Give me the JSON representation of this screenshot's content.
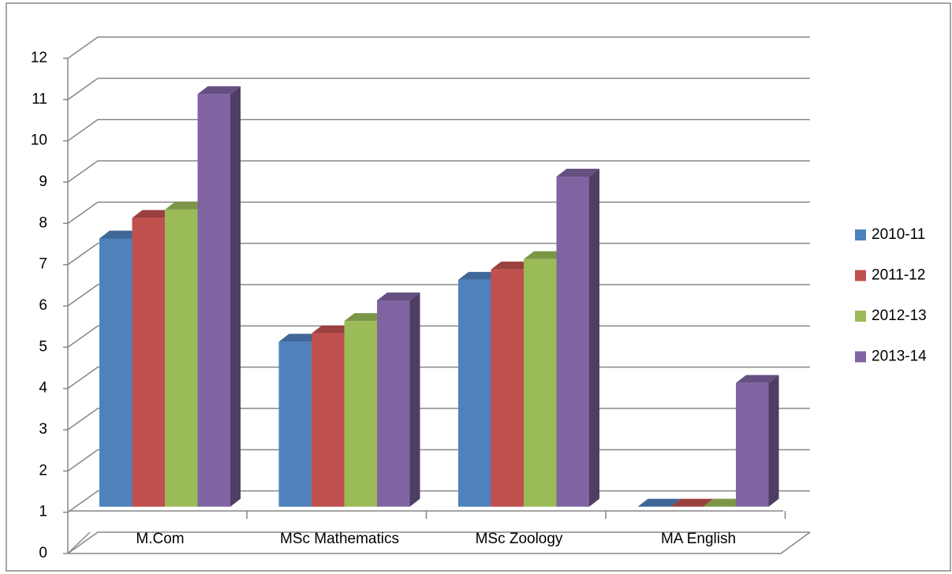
{
  "chart_data": {
    "type": "bar3d",
    "categories": [
      "M.Com",
      "MSc Mathematics",
      "MSc Zoology",
      "MA English"
    ],
    "series": [
      {
        "name": "2010-11",
        "color": "#4f81bd",
        "values": [
          7.5,
          5,
          6.5,
          1
        ]
      },
      {
        "name": "2011-12",
        "color": "#c0504d",
        "values": [
          8,
          5.2,
          6.75,
          1
        ]
      },
      {
        "name": "2012-13",
        "color": "#9bbb59",
        "values": [
          8.2,
          5.5,
          7,
          1
        ]
      },
      {
        "name": "2013-14",
        "color": "#8064a2",
        "values": [
          11,
          6,
          9,
          4
        ]
      }
    ],
    "ylim": [
      0,
      12
    ],
    "yticks": [
      0,
      1,
      2,
      3,
      4,
      5,
      6,
      7,
      8,
      9,
      10,
      11,
      12
    ],
    "grid": true,
    "legend": "right"
  }
}
